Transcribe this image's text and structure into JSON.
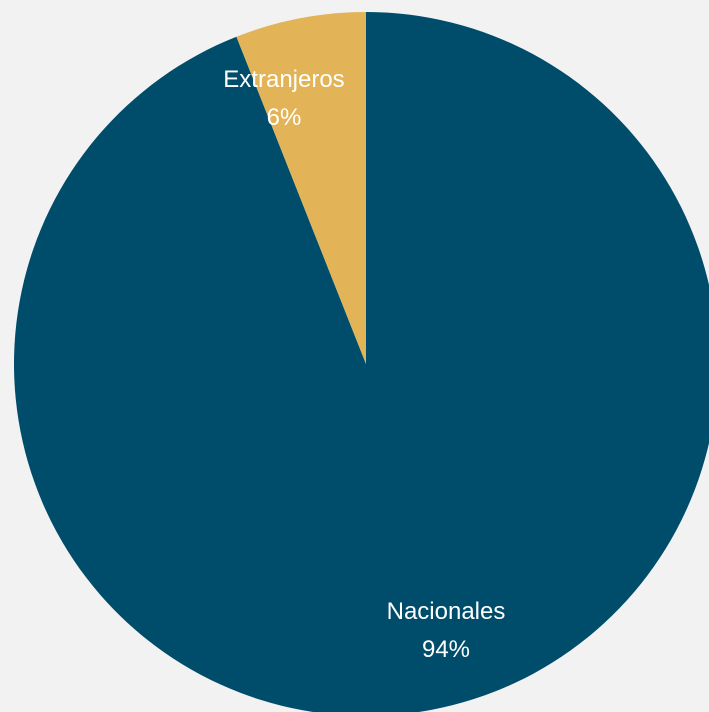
{
  "colors": {
    "background": "#f2f2f2",
    "nacionales": "#004d6b",
    "extranjeros": "#e2b457",
    "label_text": "#ffffff"
  },
  "chart_data": {
    "type": "pie",
    "title": "",
    "start_angle": "12-o-clock",
    "direction": "clockwise",
    "slices": [
      {
        "label": "Nacionales",
        "value": 94,
        "percent_label": "94%",
        "color": "#004d6b"
      },
      {
        "label": "Extranjeros",
        "value": 6,
        "percent_label": "6%",
        "color": "#e2b457"
      }
    ],
    "legend": "none"
  }
}
